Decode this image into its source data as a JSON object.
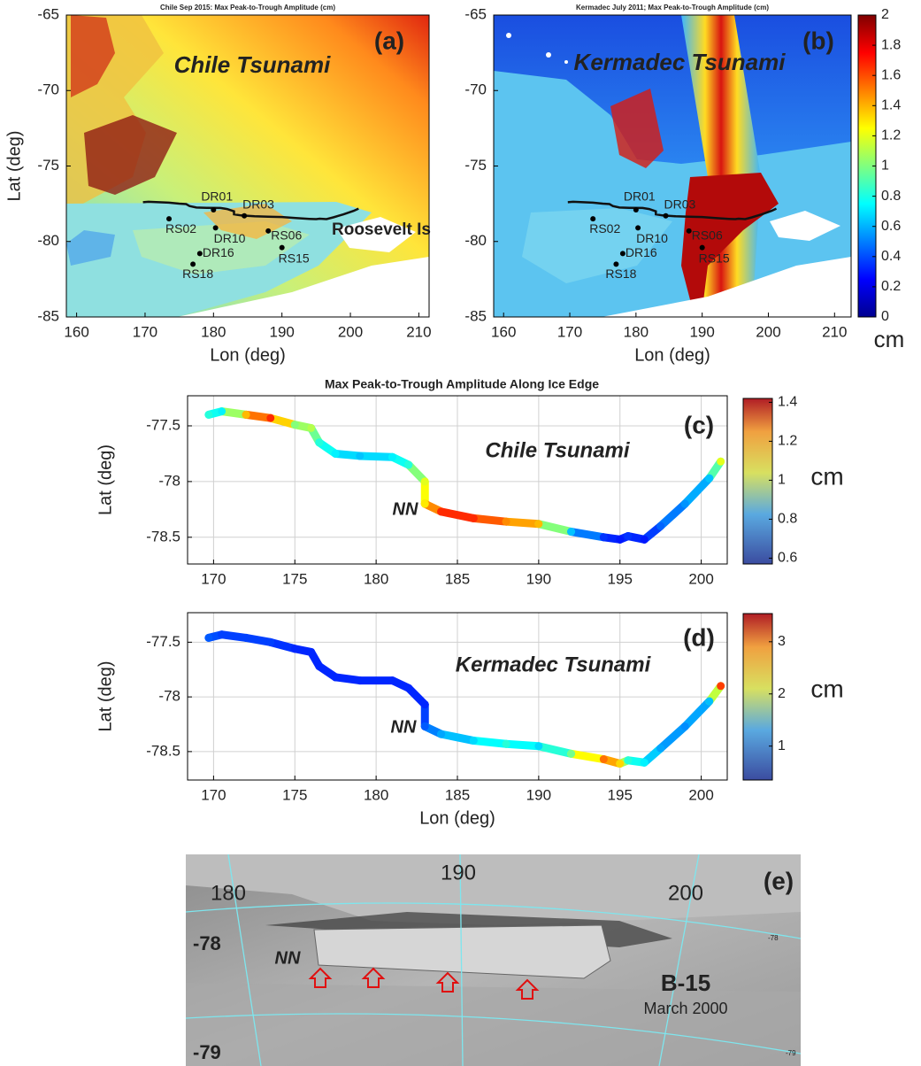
{
  "chart_data": [
    {
      "type": "map",
      "panel": "(a)",
      "title": "Chile  Sep 2015:  Max  Peak-to-Trough  Amplitude (cm)",
      "label": "Chile Tsunami",
      "annotation": "Roosevelt Is",
      "xlabel": "Lon  (deg)",
      "ylabel": "Lat  (deg)",
      "xlim": [
        158.5,
        211.5
      ],
      "ylim": [
        -85,
        -65
      ],
      "xticks": [
        160,
        170,
        180,
        190,
        200,
        210
      ],
      "yticks": [
        -85,
        -80,
        -75,
        -70,
        -65
      ],
      "stations": [
        {
          "name": "DR01",
          "x": 180,
          "y": -77.9
        },
        {
          "name": "DR03",
          "x": 184.5,
          "y": -78.3
        },
        {
          "name": "RS02",
          "x": 173.5,
          "y": -78.5
        },
        {
          "name": "DR10",
          "x": 180.3,
          "y": -79.1
        },
        {
          "name": "RS06",
          "x": 188,
          "y": -79.3
        },
        {
          "name": "DR16",
          "x": 178,
          "y": -80.8
        },
        {
          "name": "RS15",
          "x": 190,
          "y": -80.4
        },
        {
          "name": "RS18",
          "x": 177,
          "y": -81.5
        }
      ]
    },
    {
      "type": "map",
      "panel": "(b)",
      "title": "Kermadec  July 2011;  Max  Peak-to-Trough  Amplitude  (cm)",
      "label": "Kermadec Tsunami",
      "xlabel": "Lon  (deg)",
      "xlim": [
        158.5,
        212.5
      ],
      "ylim": [
        -85,
        -65
      ],
      "xticks": [
        160,
        170,
        180,
        190,
        200,
        210
      ],
      "yticks": [
        -85,
        -80,
        -75,
        -70,
        -65
      ],
      "stations": [
        {
          "name": "DR01",
          "x": 180,
          "y": -77.9
        },
        {
          "name": "DR03",
          "x": 184.5,
          "y": -78.3
        },
        {
          "name": "RS02",
          "x": 173.5,
          "y": -78.5
        },
        {
          "name": "DR10",
          "x": 180.3,
          "y": -79.1
        },
        {
          "name": "RS06",
          "x": 188,
          "y": -79.3
        },
        {
          "name": "DR16",
          "x": 178,
          "y": -80.8
        },
        {
          "name": "RS15",
          "x": 190,
          "y": -80.4
        },
        {
          "name": "RS18",
          "x": 177,
          "y": -81.5
        }
      ],
      "colorbar": {
        "lim": [
          0,
          2
        ],
        "ticks": [
          0,
          0.2,
          0.4,
          0.6,
          0.8,
          1,
          1.2,
          1.4,
          1.6,
          1.8,
          2
        ],
        "unit": "cm"
      }
    },
    {
      "type": "line",
      "panel": "(c)",
      "title": "Max Peak-to-Trough Amplitude Along Ice Edge",
      "label": "Chile Tsunami",
      "annotation": "NN",
      "ylabel": "Lat  (deg)",
      "xlim": [
        168.4,
        201.6
      ],
      "ylim": [
        -78.74,
        -77.23
      ],
      "xticks": [
        170,
        175,
        180,
        185,
        190,
        195,
        200
      ],
      "yticks": [
        -77.5,
        -78,
        -78.5
      ],
      "x": [
        169.7,
        170.5,
        172,
        173.5,
        175,
        176,
        176.5,
        177.5,
        179,
        181,
        182,
        183,
        183,
        184,
        186,
        188,
        190,
        192,
        194,
        195,
        195.5,
        196.5,
        197.5,
        199,
        200.5,
        201.2
      ],
      "y": [
        -77.4,
        -77.37,
        -77.4,
        -77.43,
        -77.49,
        -77.52,
        -77.65,
        -77.75,
        -77.77,
        -77.78,
        -77.85,
        -78.0,
        -78.2,
        -78.27,
        -78.33,
        -78.36,
        -78.38,
        -78.45,
        -78.5,
        -78.52,
        -78.49,
        -78.52,
        -78.4,
        -78.2,
        -77.97,
        -77.82
      ],
      "values": [
        0.9,
        0.85,
        1.2,
        1.35,
        1.0,
        1.05,
        0.9,
        0.85,
        0.8,
        0.85,
        0.9,
        1.1,
        1.15,
        1.35,
        1.35,
        1.25,
        1.2,
        0.8,
        0.65,
        0.62,
        0.65,
        0.62,
        0.7,
        0.75,
        0.8,
        1.1
      ],
      "colorbar": {
        "lim": [
          0.57,
          1.42
        ],
        "ticks": [
          0.6,
          0.8,
          1,
          1.2,
          1.4
        ],
        "unit": "cm"
      },
      "grid": true
    },
    {
      "type": "line",
      "panel": "(d)",
      "label": "Kermadec Tsunami",
      "annotation": "NN",
      "xlabel": "Lon  (deg)",
      "ylabel": "Lat  (deg)",
      "xlim": [
        168.4,
        201.6
      ],
      "ylim": [
        -78.76,
        -77.23
      ],
      "xticks": [
        170,
        175,
        180,
        185,
        190,
        195,
        200
      ],
      "yticks": [
        -77.5,
        -78,
        -78.5
      ],
      "x": [
        169.7,
        170.5,
        172,
        173.5,
        175,
        176,
        176.5,
        177.5,
        179,
        181,
        182,
        183,
        183,
        184,
        186,
        188,
        190,
        192,
        194,
        195,
        195.5,
        196.5,
        197.5,
        199,
        200.5,
        201.2
      ],
      "y": [
        -77.46,
        -77.43,
        -77.46,
        -77.5,
        -77.56,
        -77.59,
        -77.72,
        -77.82,
        -77.85,
        -77.85,
        -77.92,
        -78.07,
        -78.27,
        -78.34,
        -78.4,
        -78.43,
        -78.45,
        -78.52,
        -78.57,
        -78.61,
        -78.58,
        -78.6,
        -78.47,
        -78.27,
        -78.04,
        -77.9
      ],
      "values": [
        0.8,
        0.7,
        0.7,
        0.7,
        0.6,
        0.6,
        0.6,
        0.6,
        0.6,
        0.6,
        0.6,
        0.6,
        0.8,
        1.1,
        1.3,
        1.6,
        1.3,
        1.9,
        3.0,
        2.6,
        1.6,
        1.4,
        1.1,
        1.0,
        1.2,
        3.2
      ],
      "colorbar": {
        "lim": [
          0.35,
          3.54
        ],
        "ticks": [
          1,
          2,
          3
        ],
        "unit": "cm"
      },
      "grid": true
    },
    {
      "type": "image",
      "panel": "(e)",
      "labels": [
        "180",
        "190",
        "200",
        "-78",
        "-79",
        "NN",
        "B-15",
        "March 2000"
      ],
      "grid_labels": [
        "-78",
        "-79"
      ]
    }
  ]
}
